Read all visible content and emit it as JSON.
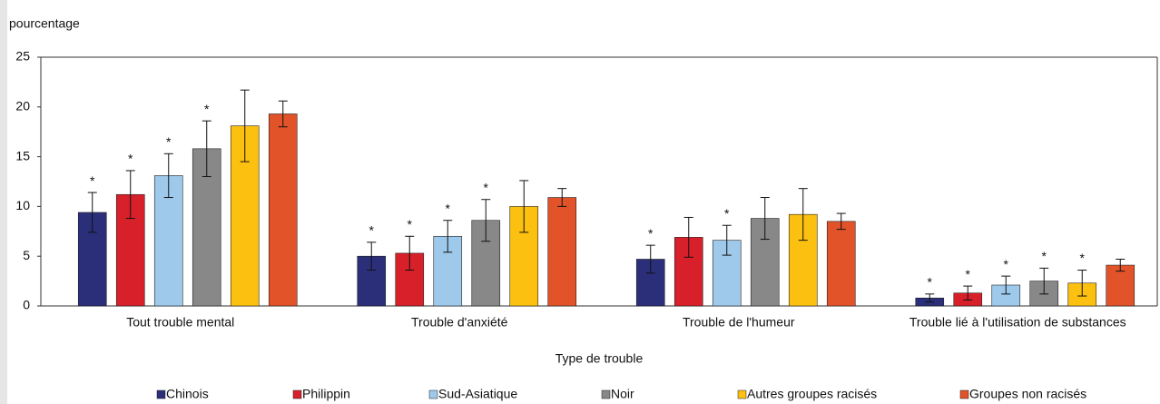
{
  "chart_data": {
    "type": "bar",
    "y_axis_label": "pourcentage",
    "x_axis_label": "Type de trouble",
    "categories": [
      "Tout trouble mental",
      "Trouble d'anxiété",
      "Trouble de l'humeur",
      "Trouble lié à l'utilisation de substances"
    ],
    "series": [
      {
        "name": "Chinois",
        "color": "#2b2f7a",
        "values": [
          9.4,
          5.0,
          4.7,
          0.8
        ],
        "errors": [
          2.0,
          1.4,
          1.4,
          0.4
        ],
        "markers": [
          "*",
          "*",
          "*",
          "*"
        ]
      },
      {
        "name": "Philippin",
        "color": "#d7202a",
        "values": [
          11.2,
          5.3,
          6.9,
          1.3
        ],
        "errors": [
          2.4,
          1.7,
          2.0,
          0.7
        ],
        "markers": [
          "*",
          "*",
          null,
          "*"
        ]
      },
      {
        "name": "Sud-Asiatique",
        "color": "#9ec9ea",
        "values": [
          13.1,
          7.0,
          6.6,
          2.1
        ],
        "errors": [
          2.2,
          1.6,
          1.5,
          0.9
        ],
        "markers": [
          "*",
          "*",
          "*",
          "*"
        ]
      },
      {
        "name": "Noir",
        "color": "#888888",
        "values": [
          15.8,
          8.6,
          8.8,
          2.5
        ],
        "errors": [
          2.8,
          2.1,
          2.1,
          1.3
        ],
        "markers": [
          "*",
          "*",
          null,
          "*"
        ]
      },
      {
        "name": "Autres groupes racisés",
        "color": "#fcc010",
        "values": [
          18.1,
          10.0,
          9.2,
          2.3
        ],
        "errors": [
          3.6,
          2.6,
          2.6,
          1.3
        ],
        "markers": [
          null,
          null,
          null,
          "*"
        ]
      },
      {
        "name": "Groupes non racisés",
        "color": "#e2532a",
        "values": [
          19.3,
          10.9,
          8.5,
          4.1
        ],
        "errors": [
          1.3,
          0.9,
          0.8,
          0.6
        ],
        "markers": [
          null,
          null,
          null,
          null
        ]
      }
    ],
    "ylim": [
      0,
      25
    ],
    "yticks": [
      0,
      5,
      10,
      15,
      20,
      25
    ],
    "grid": false,
    "legend": "bottom"
  }
}
